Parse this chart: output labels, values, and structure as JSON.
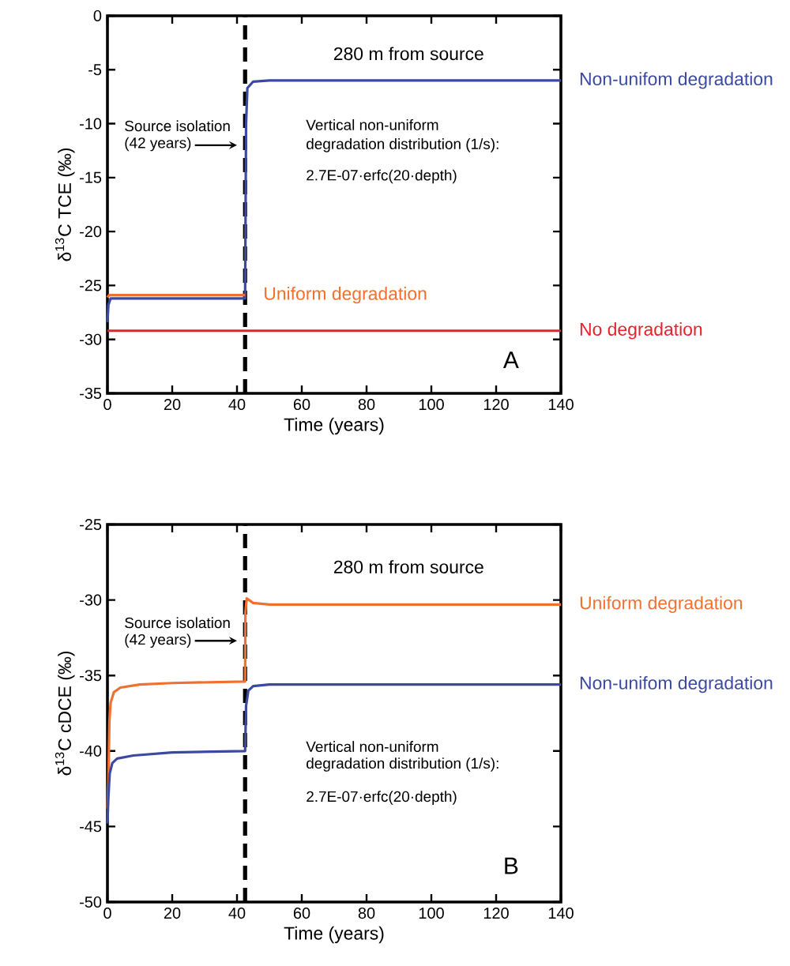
{
  "chart_data": [
    {
      "type": "line",
      "xlabel": "Time (years)",
      "ylabel": "δ$^{13}$C TCE (‰)",
      "xlim": [
        0,
        140
      ],
      "xticks": [
        0,
        20,
        40,
        60,
        80,
        100,
        120,
        140
      ],
      "ylim": [
        -35,
        0
      ],
      "yticks": [
        -35,
        -30,
        -25,
        -20,
        -15,
        -10,
        -5,
        0
      ],
      "series": [
        {
          "name": "Non-unifom degradation",
          "color": "#3b4aa0",
          "x": [
            0,
            0.3,
            1,
            42.5,
            42.8,
            43.2,
            45,
            50,
            140
          ],
          "values": [
            -28.4,
            -26.8,
            -26.2,
            -26.2,
            -10,
            -6.7,
            -6.1,
            -6.0,
            -6.0
          ]
        },
        {
          "name": "Uniform degradation",
          "color": "#f07030",
          "x": [
            0,
            0.5,
            42.5
          ],
          "values": [
            -26.1,
            -25.9,
            -25.9
          ]
        },
        {
          "name": "No degradation",
          "color": "#e8202a",
          "x": [
            0,
            140
          ],
          "values": [
            -29.2,
            -29.2
          ]
        }
      ],
      "ref_lines": [
        {
          "axis": "x",
          "value": 42.5,
          "color": "#000000",
          "line_style": "dashed"
        }
      ],
      "annotations": [
        "280 m from source",
        "Source isolation",
        "(42 years)",
        "Vertical non-uniform",
        "degradation distribution (1/s):",
        "2.7E-07·erfc(20·depth)",
        "A"
      ]
    },
    {
      "type": "line",
      "xlabel": "Time (years)",
      "ylabel": "δ$^{13}$C cDCE (‰)",
      "xlim": [
        0,
        140
      ],
      "xticks": [
        0,
        20,
        40,
        60,
        80,
        100,
        120,
        140
      ],
      "ylim": [
        -50,
        -25
      ],
      "yticks": [
        -50,
        -45,
        -40,
        -35,
        -30,
        -25
      ],
      "series": [
        {
          "name": "Uniform degradation",
          "color": "#f07030",
          "x": [
            0,
            0.3,
            0.6,
            1,
            2,
            4,
            10,
            20,
            42.5,
            42.6,
            43,
            45,
            50,
            140
          ],
          "values": [
            -43.8,
            -42,
            -38,
            -36.8,
            -36.1,
            -35.8,
            -35.6,
            -35.5,
            -35.4,
            -30.8,
            -29.9,
            -30.2,
            -30.3,
            -30.3
          ]
        },
        {
          "name": "Non-unifom degradation",
          "color": "#3b4aa0",
          "x": [
            0,
            0.3,
            0.7,
            1.5,
            3,
            8,
            20,
            42.5,
            42.8,
            43.5,
            45,
            50,
            140
          ],
          "values": [
            -44.8,
            -43,
            -41.5,
            -40.8,
            -40.5,
            -40.3,
            -40.1,
            -40.0,
            -37,
            -36.0,
            -35.7,
            -35.6,
            -35.6
          ]
        }
      ],
      "ref_lines": [
        {
          "axis": "x",
          "value": 42.5,
          "color": "#000000",
          "line_style": "dashed"
        }
      ],
      "annotations": [
        "280 m from source",
        "Source isolation",
        "(42 years)",
        "Vertical non-uniform",
        "degradation distribution (1/s):",
        "2.7E-07·erfc(20·depth)",
        "B"
      ]
    }
  ]
}
